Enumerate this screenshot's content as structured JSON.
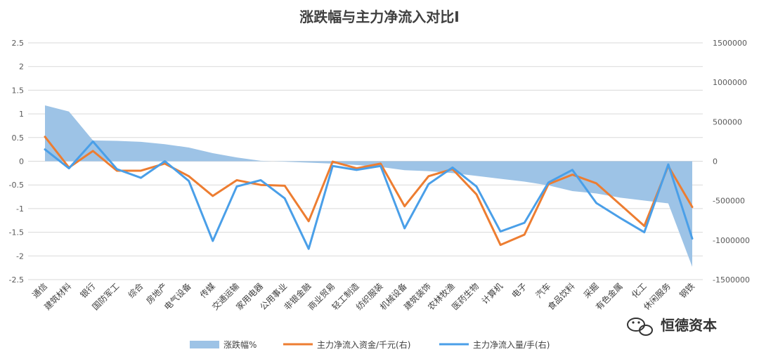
{
  "chart_data": {
    "type": "area",
    "title": "涨跌幅与主力净流入对比I",
    "categories": [
      "通信",
      "建筑材料",
      "银行",
      "国防军工",
      "综合",
      "房地产",
      "电气设备",
      "传媒",
      "交通运输",
      "家用电器",
      "公用事业",
      "非银金融",
      "商业贸易",
      "轻工制造",
      "纺织服装",
      "机械设备",
      "建筑装饰",
      "农林牧渔",
      "医药生物",
      "计算机",
      "电子",
      "汽车",
      "食品饮料",
      "采掘",
      "有色金属",
      "化工",
      "休闲服务",
      "钢铁"
    ],
    "y_left": {
      "min": -2.5,
      "max": 2.5,
      "step": 0.5,
      "ticks": [
        "2.5",
        "2",
        "1.5",
        "1",
        "0.5",
        "0",
        "-0.5",
        "-1",
        "-1.5",
        "-2",
        "-2.5"
      ]
    },
    "y_right": {
      "min": -1500000,
      "max": 1500000,
      "step": 500000,
      "ticks": [
        "1500000",
        "1000000",
        "500000",
        "0",
        "-500000",
        "-1000000",
        "-1500000"
      ]
    },
    "series": [
      {
        "name": "涨跌幅%",
        "axis": "left",
        "kind": "area",
        "color": "#9DC3E6",
        "values": [
          1.18,
          1.05,
          0.44,
          0.43,
          0.41,
          0.36,
          0.29,
          0.17,
          0.08,
          0.01,
          -0.01,
          -0.03,
          -0.05,
          -0.08,
          -0.12,
          -0.19,
          -0.21,
          -0.25,
          -0.31,
          -0.37,
          -0.43,
          -0.51,
          -0.63,
          -0.68,
          -0.77,
          -0.83,
          -0.89,
          -2.23
        ]
      },
      {
        "name": "主力净流入资金/千元(右)",
        "axis": "right",
        "kind": "line",
        "color": "#ED7D31",
        "values": [
          310000,
          -80000,
          130000,
          -120000,
          -120000,
          -30000,
          -190000,
          -440000,
          -240000,
          -300000,
          -310000,
          -760000,
          -5000,
          -90000,
          -30000,
          -570000,
          -190000,
          -100000,
          -420000,
          -1060000,
          -930000,
          -290000,
          -170000,
          -280000,
          -550000,
          -820000,
          -60000,
          -580000
        ]
      },
      {
        "name": "主力净流入量/手(右)",
        "axis": "right",
        "kind": "line",
        "color": "#4A9FE8",
        "values": [
          150000,
          -90000,
          250000,
          -100000,
          -210000,
          0,
          -250000,
          -1010000,
          -320000,
          -240000,
          -470000,
          -1110000,
          -60000,
          -110000,
          -60000,
          -850000,
          -290000,
          -80000,
          -320000,
          -890000,
          -780000,
          -270000,
          -110000,
          -530000,
          -720000,
          -900000,
          -40000,
          -980000
        ]
      }
    ],
    "grid": true,
    "legend_position": "bottom"
  },
  "watermark": {
    "text": "恒德资本",
    "icon": "wechat-icon"
  }
}
